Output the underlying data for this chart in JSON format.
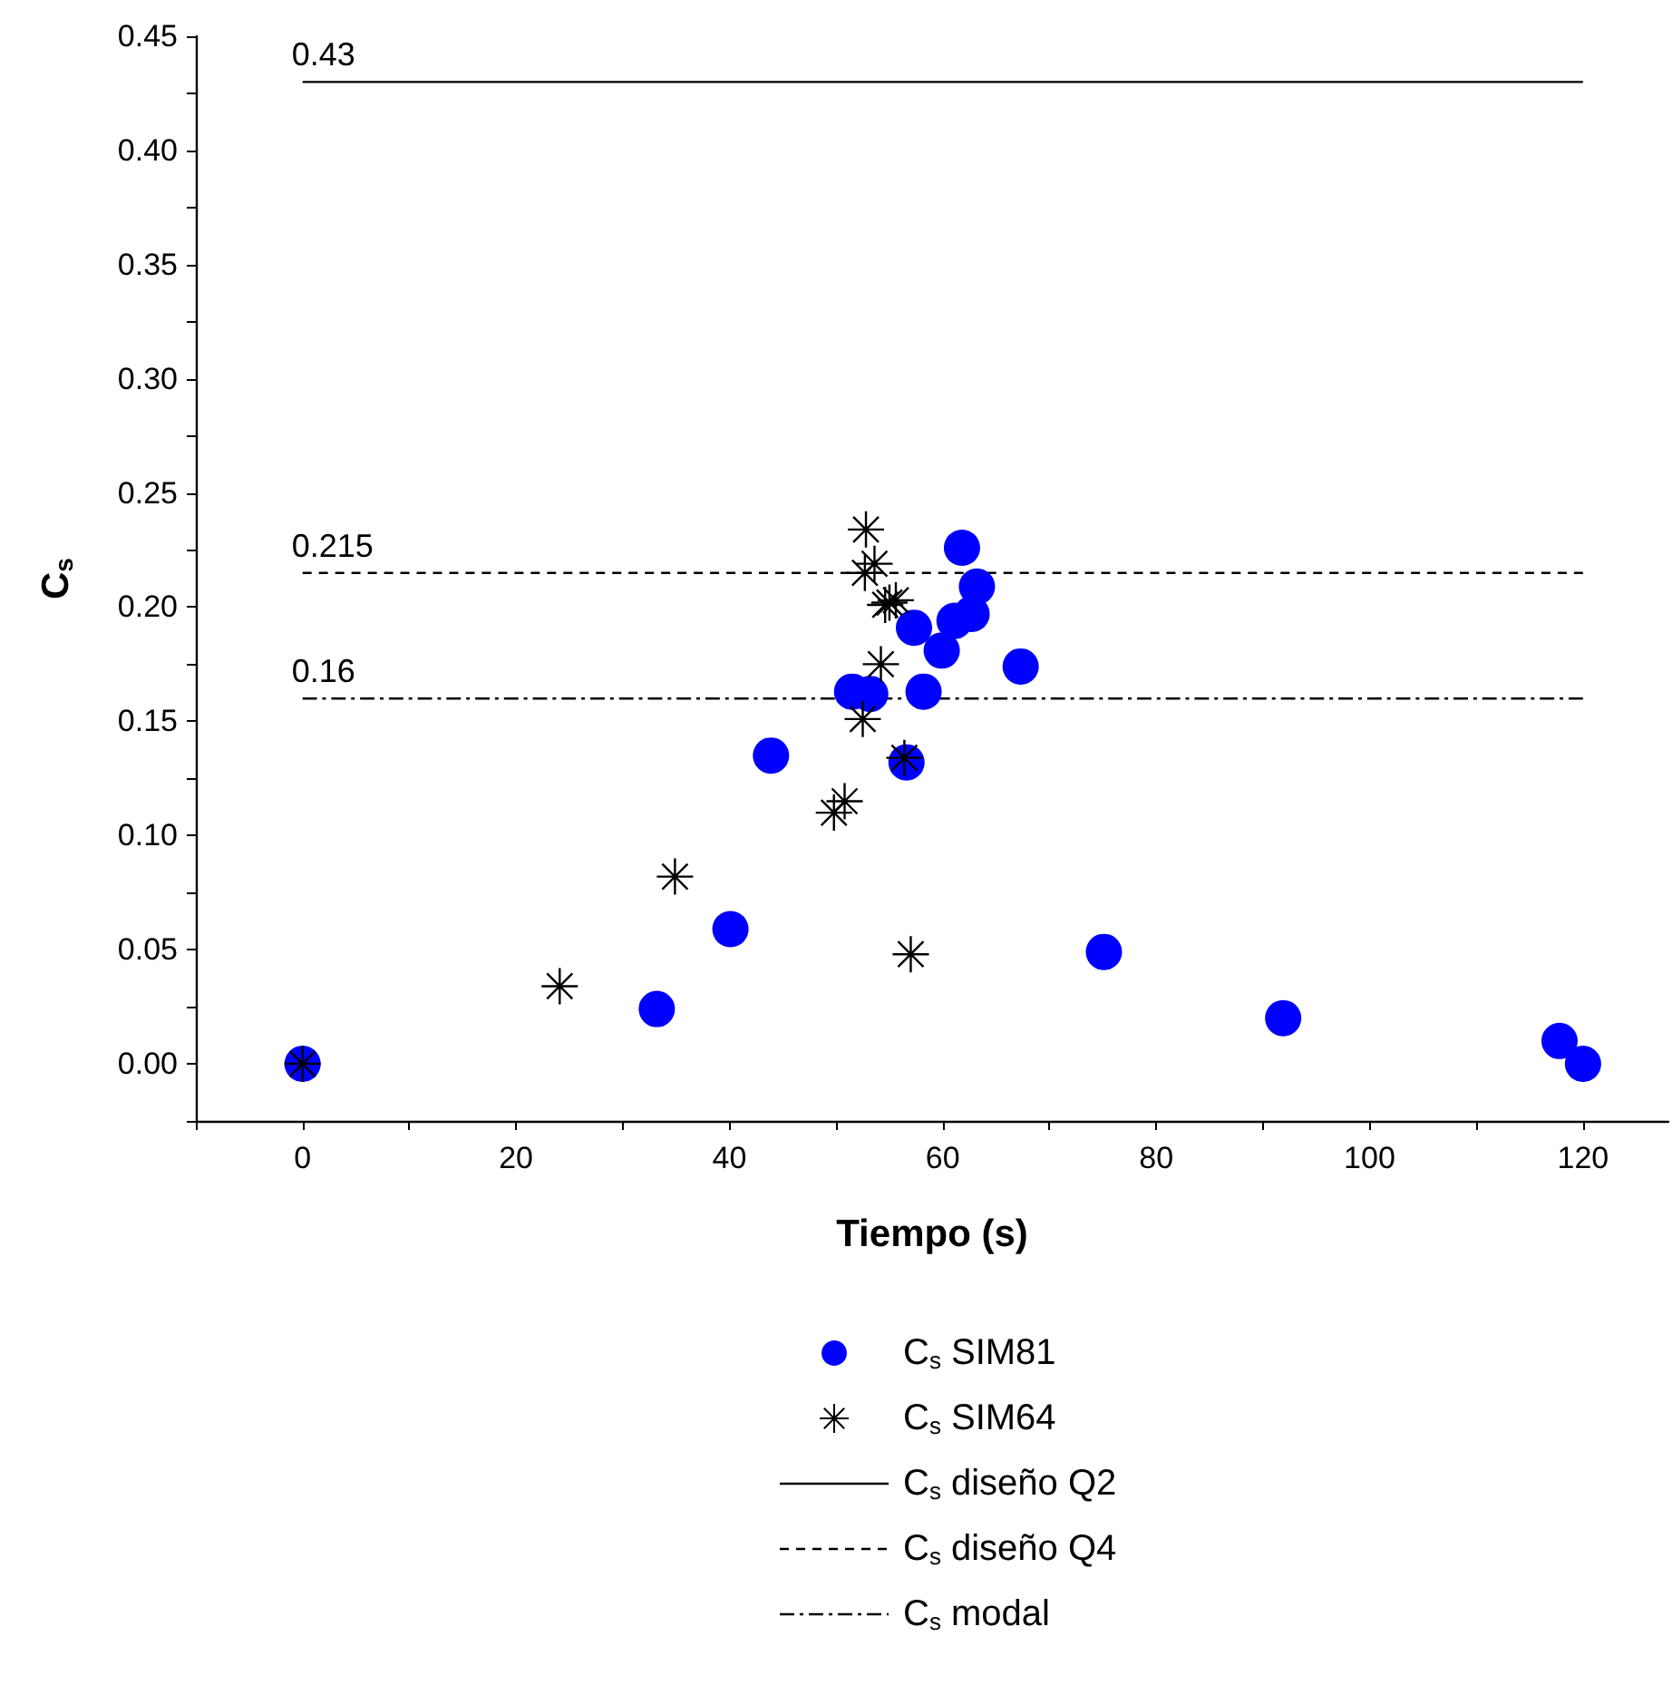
{
  "chart_data": {
    "type": "scatter",
    "xlabel": "Tiempo (s)",
    "ylabel": "C$_{s}$",
    "xlim": [
      -10,
      128
    ],
    "ylim": [
      -0.025,
      0.45
    ],
    "xticks": [
      {
        "value": -10,
        "label": null
      },
      0,
      {
        "value": 10,
        "label": null
      },
      20,
      {
        "value": 30,
        "label": null
      },
      40,
      {
        "value": 50,
        "label": null
      },
      60,
      {
        "value": 70,
        "label": null
      },
      80,
      {
        "value": 90,
        "label": null
      },
      100,
      {
        "value": 110,
        "label": null
      },
      120
    ],
    "yticks": [
      {
        "value": -0.025,
        "label": null
      },
      {
        "value": 0,
        "label": "0.00"
      },
      {
        "value": 0.025,
        "label": null
      },
      {
        "value": 0.05,
        "label": "0.05"
      },
      {
        "value": 0.075,
        "label": null
      },
      {
        "value": 0.1,
        "label": "0.10"
      },
      {
        "value": 0.125,
        "label": null
      },
      {
        "value": 0.15,
        "label": "0.15"
      },
      {
        "value": 0.175,
        "label": null
      },
      {
        "value": 0.2,
        "label": "0.20"
      },
      {
        "value": 0.225,
        "label": null
      },
      {
        "value": 0.25,
        "label": "0.25"
      },
      {
        "value": 0.275,
        "label": null
      },
      {
        "value": 0.3,
        "label": "0.30"
      },
      {
        "value": 0.325,
        "label": null
      },
      {
        "value": 0.35,
        "label": "0.35"
      },
      {
        "value": 0.375,
        "label": null
      },
      {
        "value": 0.4,
        "label": "0.40"
      },
      {
        "value": 0.425,
        "label": null
      },
      {
        "value": 0.45,
        "label": "0.45"
      }
    ],
    "grid": false,
    "legend": "bottom",
    "series": [
      {
        "name": "C$_{s}$ SIM81",
        "marker": "circle",
        "color": "#0000ff",
        "x": [
          0,
          33.2,
          40.1,
          43.9,
          51.5,
          53.2,
          56.6,
          57.3,
          58.2,
          59.9,
          61.1,
          61.8,
          62.7,
          63.2,
          67.3,
          75.1,
          91.9,
          117.8,
          120
        ],
        "values": [
          0,
          0.024,
          0.059,
          0.135,
          0.163,
          0.162,
          0.132,
          0.191,
          0.163,
          0.181,
          0.194,
          0.226,
          0.197,
          0.209,
          0.174,
          0.049,
          0.02,
          0.01,
          0
        ]
      },
      {
        "name": "C$_{s}$ SIM64",
        "marker": "cross",
        "color": "#000000",
        "x": [
          0,
          24.1,
          34.9,
          49.8,
          50.8,
          52.5,
          56.4,
          57.0,
          54.2,
          54.6,
          55.0,
          55.6,
          52.7,
          53.6,
          52.8
        ],
        "values": [
          0,
          0.034,
          0.082,
          0.11,
          0.115,
          0.151,
          0.134,
          0.048,
          0.175,
          0.201,
          0.202,
          0.203,
          0.215,
          0.219,
          0.234
        ]
      },
      {
        "name": "C$_{s}$ diseño Q2",
        "type": "line",
        "marker": "none",
        "line_style": "solid",
        "color": "#000000",
        "x": [
          0,
          120
        ],
        "values": [
          0.43,
          0.43
        ]
      },
      {
        "name": "C$_{s}$ diseño Q4",
        "type": "line",
        "marker": "none",
        "line_style": "dashed",
        "color": "#000000",
        "x": [
          0,
          120
        ],
        "values": [
          0.215,
          0.215
        ]
      },
      {
        "name": "C$_{s}$ modal",
        "type": "line",
        "marker": "none",
        "line_style": "dashdot",
        "color": "#000000",
        "x": [
          0,
          120
        ],
        "values": [
          0.16,
          0.16
        ]
      }
    ],
    "annotations": [
      {
        "text": "0.43",
        "y": 0.43
      },
      {
        "text": "0.215",
        "y": 0.215
      },
      {
        "text": "0.16",
        "y": 0.16
      }
    ]
  }
}
